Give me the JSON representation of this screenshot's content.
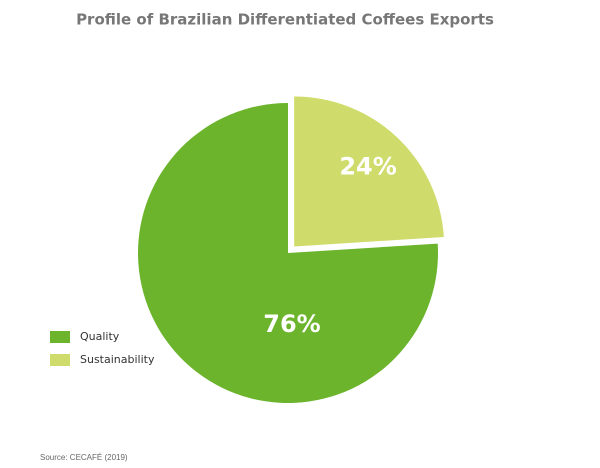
{
  "chart_data": {
    "type": "pie",
    "title": "Profile of Brazilian Differentiated Coffees Exports",
    "categories": [
      "Quality",
      "Sustainability"
    ],
    "values": [
      76,
      24
    ],
    "value_labels": [
      "76%",
      "24%"
    ],
    "colors": [
      "#6cb42c",
      "#cfdc6b"
    ],
    "legend": "bottom-left",
    "source": "Source: CECAFÉ (2019)"
  }
}
